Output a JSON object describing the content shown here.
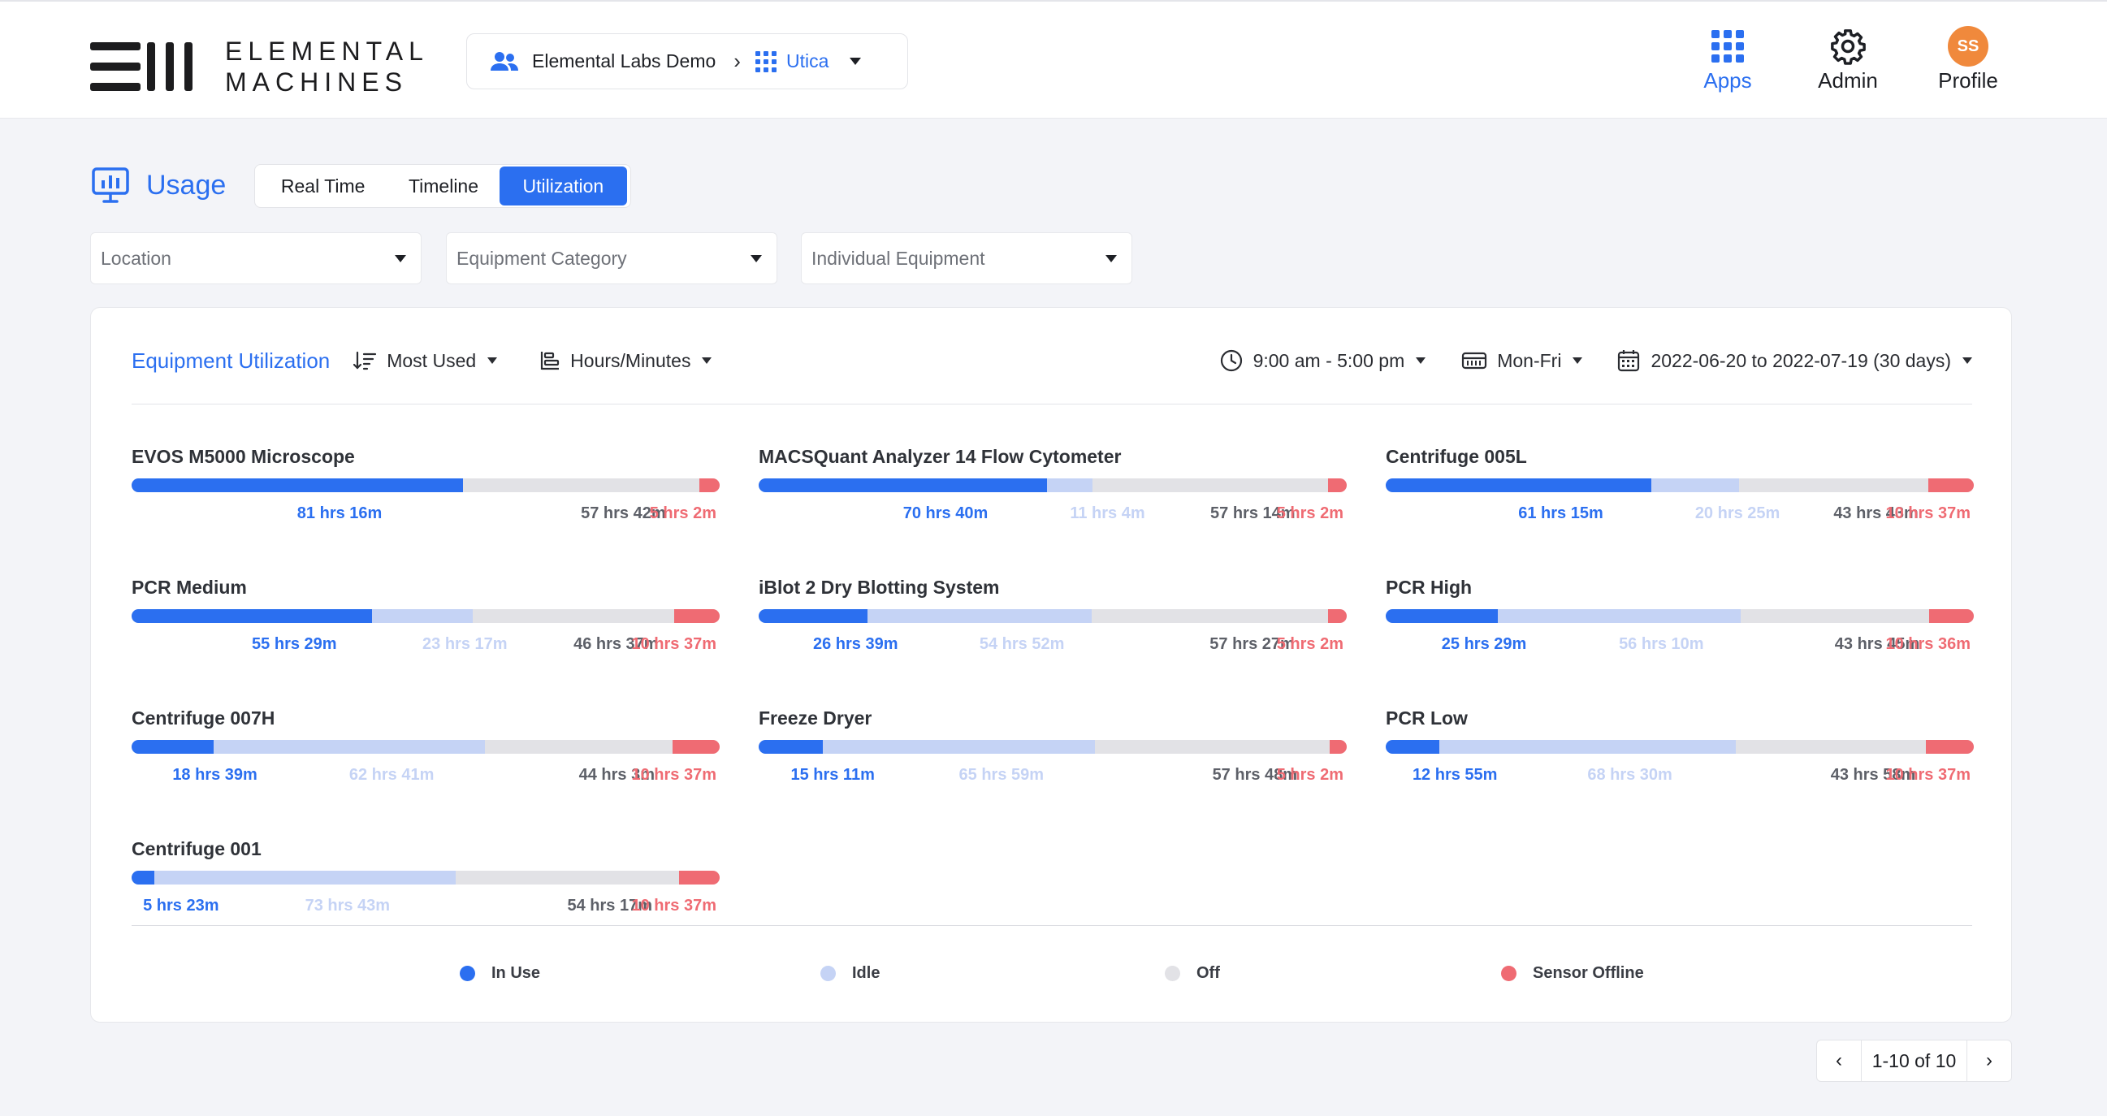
{
  "header": {
    "logo_line1": "ELEMENTAL",
    "logo_line2": "MACHINES",
    "org": "Elemental Labs Demo",
    "site": "Utica",
    "nav": [
      {
        "label": "Apps",
        "icon": "grid-icon",
        "active": true
      },
      {
        "label": "Admin",
        "icon": "gear-icon",
        "active": false
      },
      {
        "label": "Profile",
        "icon": "avatar",
        "initials": "SS",
        "active": false
      }
    ]
  },
  "usage": {
    "title": "Usage",
    "tabs": [
      {
        "label": "Real Time",
        "active": false
      },
      {
        "label": "Timeline",
        "active": false
      },
      {
        "label": "Utilization",
        "active": true
      }
    ]
  },
  "filters": [
    {
      "placeholder": "Location"
    },
    {
      "placeholder": "Equipment Category"
    },
    {
      "placeholder": "Individual Equipment"
    }
  ],
  "card": {
    "title": "Equipment Utilization",
    "sort": "Most Used",
    "units": "Hours/Minutes",
    "hours": "9:00 am - 5:00 pm",
    "days": "Mon-Fri",
    "range": "2022-06-20 to 2022-07-19 (30 days)"
  },
  "colors": {
    "in_use": "#2b6ff0",
    "idle": "#c5d3f5",
    "off": "#e2e2e6",
    "sensor_offline": "#ef6b73"
  },
  "equipment": [
    {
      "name": "EVOS M5000 Microscope",
      "in_use": "81 hrs 16m",
      "idle": "",
      "off": "57 hrs 42m",
      "offline": "5 hrs 2m",
      "pct": [
        56.3,
        0,
        40.2,
        3.5
      ]
    },
    {
      "name": "MACSQuant Analyzer 14 Flow Cytometer",
      "in_use": "70 hrs 40m",
      "idle": "11 hrs 4m",
      "off": "57 hrs 14m",
      "offline": "5 hrs 2m",
      "pct": [
        49.1,
        7.7,
        40.0,
        3.2
      ]
    },
    {
      "name": "Centrifuge 005L",
      "in_use": "61 hrs 15m",
      "idle": "20 hrs 25m",
      "off": "43 hrs 43m",
      "offline": "10 hrs 37m",
      "pct": [
        45.1,
        15.0,
        32.1,
        7.8
      ]
    },
    {
      "name": "PCR Medium",
      "in_use": "55 hrs 29m",
      "idle": "23 hrs 17m",
      "off": "46 hrs 37m",
      "offline": "10 hrs 37m",
      "pct": [
        40.9,
        17.1,
        34.3,
        7.7
      ]
    },
    {
      "name": "iBlot 2 Dry Blotting System",
      "in_use": "26 hrs 39m",
      "idle": "54 hrs 52m",
      "off": "57 hrs 27m",
      "offline": "5 hrs 2m",
      "pct": [
        18.5,
        38.1,
        40.2,
        3.2
      ]
    },
    {
      "name": "PCR High",
      "in_use": "25 hrs 29m",
      "idle": "56 hrs 10m",
      "off": "43 hrs 45m",
      "offline": "10 hrs 36m",
      "pct": [
        19.0,
        41.3,
        32.1,
        7.6
      ]
    },
    {
      "name": "Centrifuge 007H",
      "in_use": "18 hrs 39m",
      "idle": "62 hrs 41m",
      "off": "44 hrs 3m",
      "offline": "10 hrs 37m",
      "pct": [
        13.9,
        46.2,
        31.9,
        8.0
      ]
    },
    {
      "name": "Freeze Dryer",
      "in_use": "15 hrs 11m",
      "idle": "65 hrs 59m",
      "off": "57 hrs 48m",
      "offline": "5 hrs 2m",
      "pct": [
        10.9,
        46.3,
        39.9,
        2.9
      ]
    },
    {
      "name": "PCR Low",
      "in_use": "12 hrs 55m",
      "idle": "68 hrs 30m",
      "off": "43 hrs 58m",
      "offline": "10 hrs 37m",
      "pct": [
        9.1,
        50.4,
        32.3,
        8.2
      ]
    },
    {
      "name": "Centrifuge 001",
      "in_use": "5 hrs 23m",
      "idle": "73 hrs 43m",
      "off": "54 hrs 17m",
      "offline": "10 hrs 37m",
      "pct": [
        3.9,
        51.2,
        38.0,
        6.9
      ]
    }
  ],
  "legend": [
    {
      "label": "In Use",
      "color": "#2b6ff0"
    },
    {
      "label": "Idle",
      "color": "#c5d3f5"
    },
    {
      "label": "Off",
      "color": "#e2e2e6"
    },
    {
      "label": "Sensor Offline",
      "color": "#ef6b73"
    }
  ],
  "pager": {
    "text": "1-10 of 10"
  }
}
